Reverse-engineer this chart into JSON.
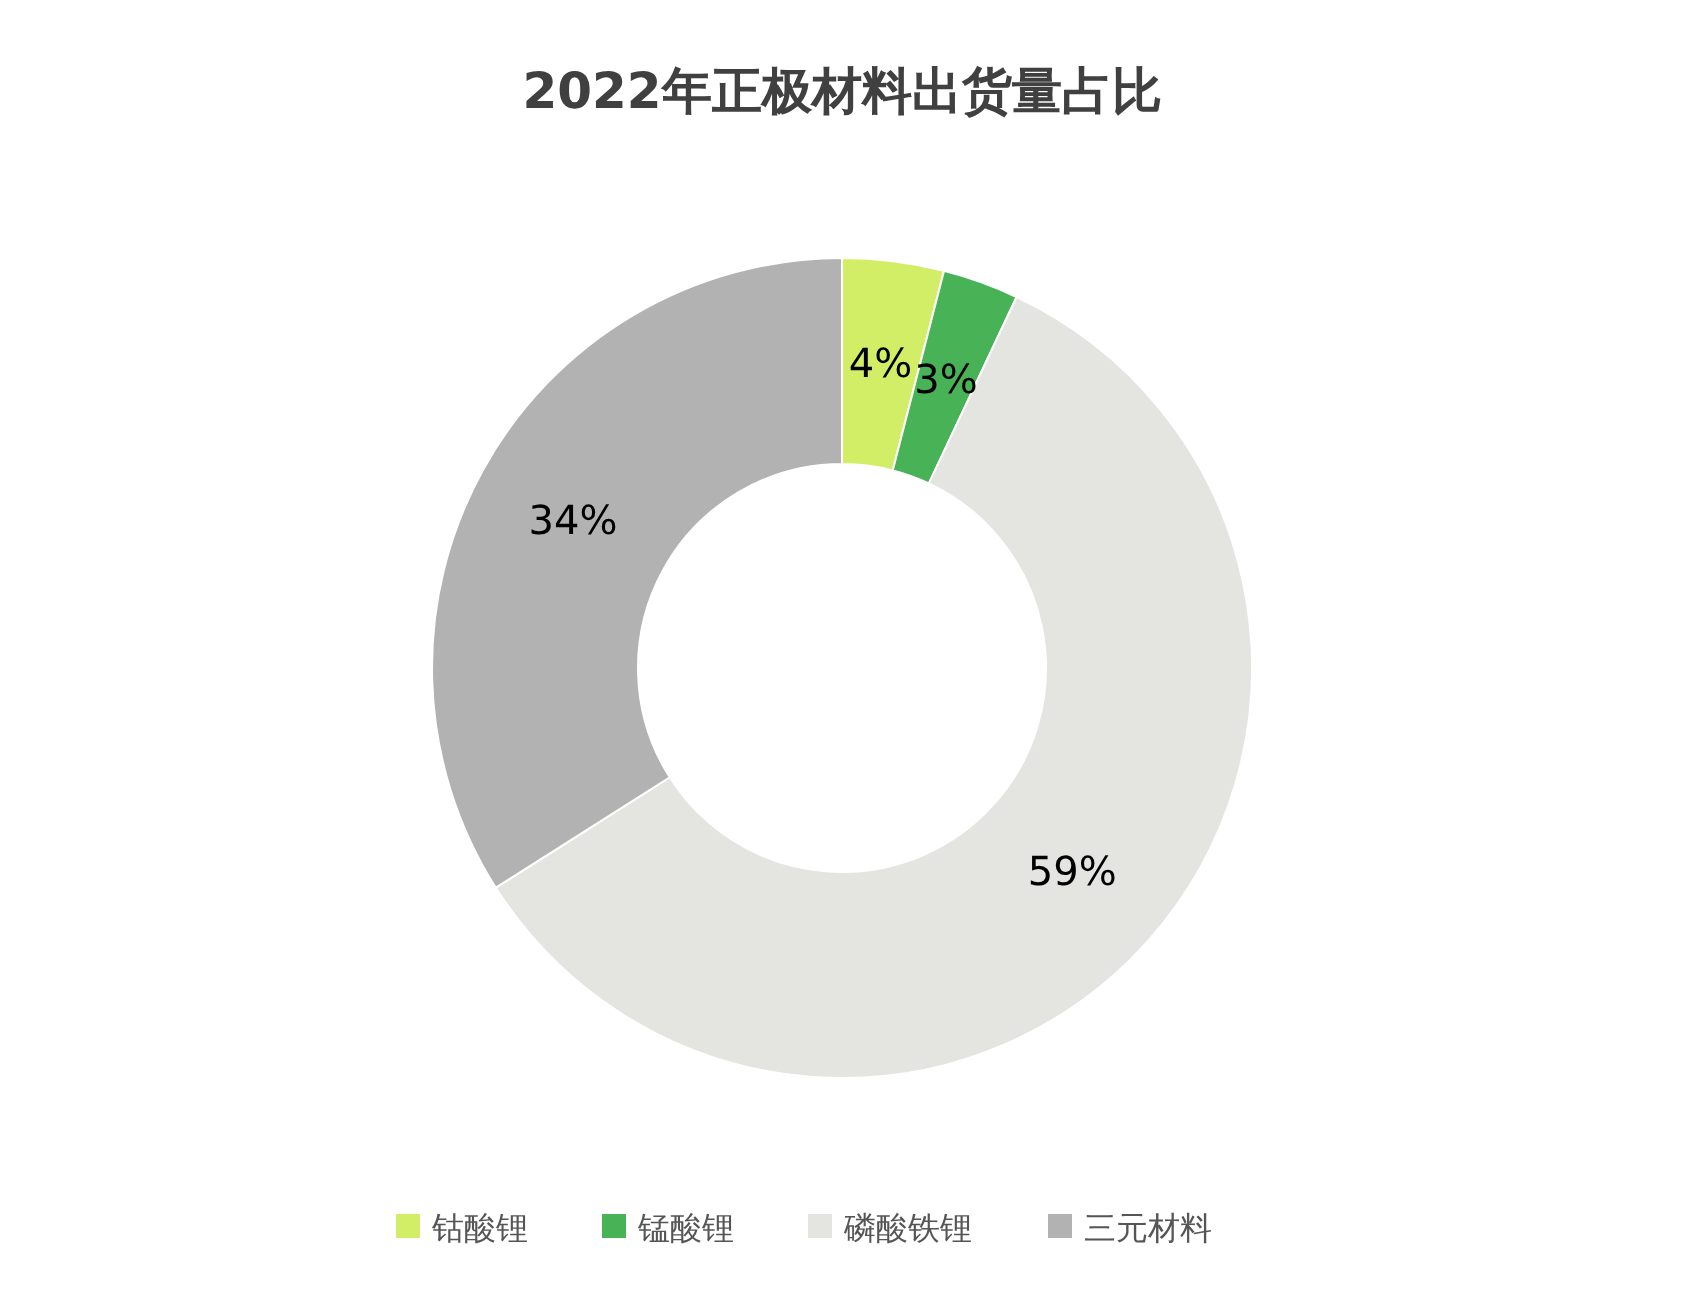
{
  "chart_data": {
    "type": "donut",
    "title": "2022年正极材料出货量占比",
    "categories": [
      "钴酸锂",
      "锰酸锂",
      "磷酸铁锂",
      "三元材料"
    ],
    "values": [
      4,
      3,
      59,
      34
    ],
    "colors": [
      "#d2ee66",
      "#48b257",
      "#e4e4e0",
      "#b2b2b2"
    ],
    "value_labels": [
      "4%",
      "3%",
      "59%",
      "34%"
    ],
    "legend": "bottom"
  }
}
